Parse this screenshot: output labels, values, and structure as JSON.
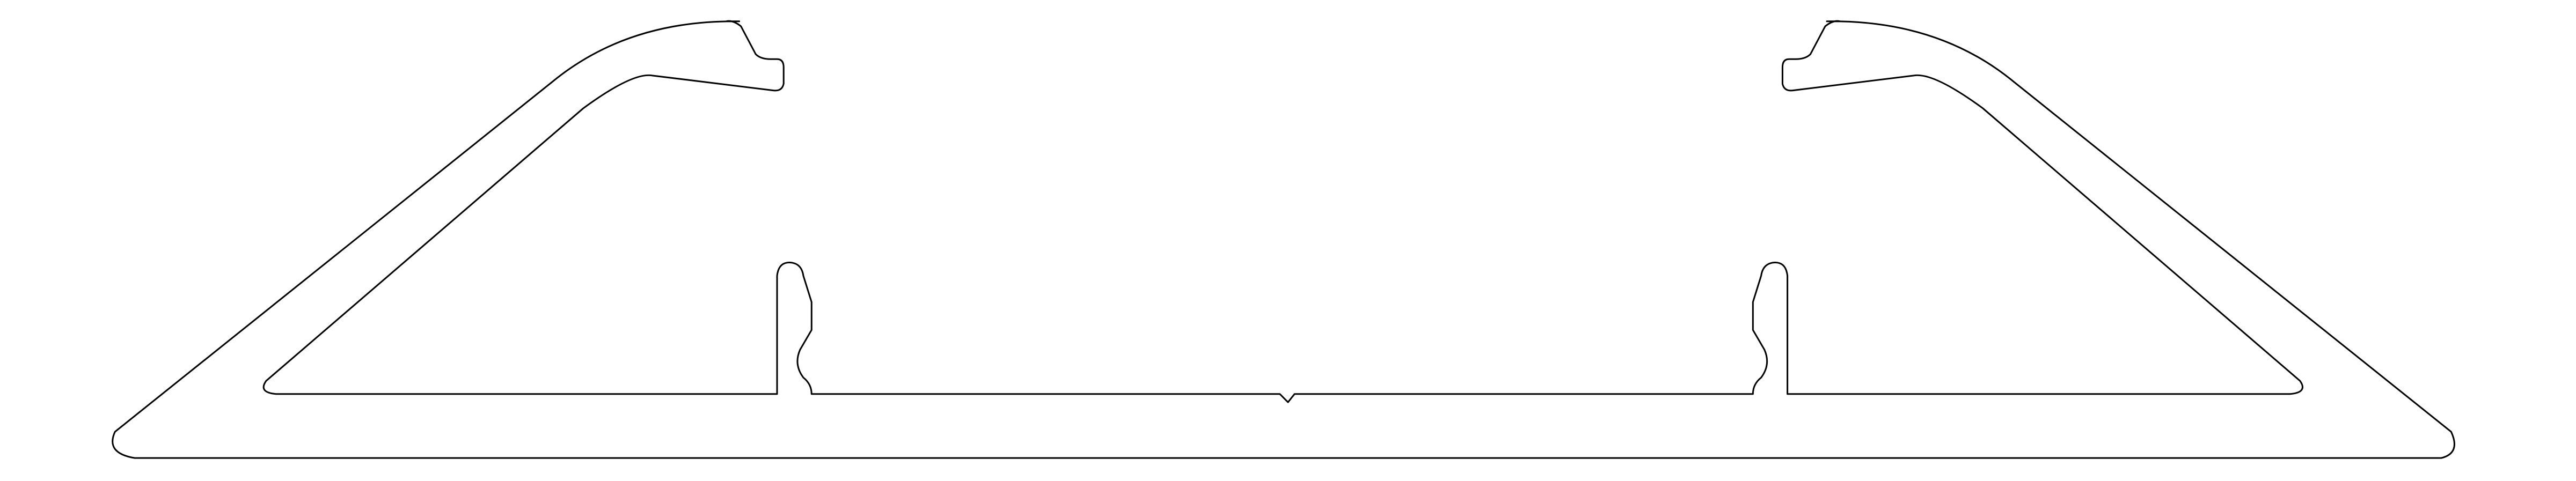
{
  "drawing": {
    "subject": "extrusion-profile-cross-section",
    "line_color": "#000000",
    "background_color": "#ffffff"
  }
}
